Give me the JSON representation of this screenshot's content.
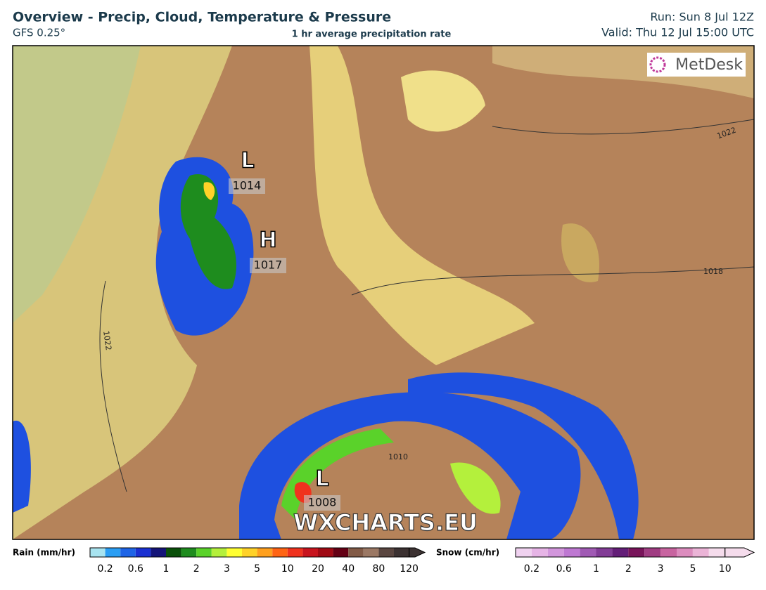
{
  "header": {
    "title": "Overview - Precip, Cloud, Temperature & Pressure",
    "model": "GFS 0.25°",
    "subtitle": "1 hr average precipitation rate",
    "run": "Run: Sun 8 Jul 12Z",
    "valid": "Valid: Thu 12 Jul 15:00 UTC"
  },
  "map": {
    "pressure_centers": [
      {
        "label": "L",
        "value": 1014
      },
      {
        "label": "H",
        "value": 1017
      },
      {
        "label": "L",
        "value": 1008
      }
    ],
    "isobar_labels": [
      1022,
      1018,
      1010,
      1022
    ],
    "logo": "MetDesk",
    "watermark": "WXCHARTS.EU"
  },
  "legend": {
    "rain": {
      "title": "Rain (mm/hr)",
      "labels": [
        0.2,
        0.6,
        1,
        2,
        3,
        5,
        10,
        20,
        40,
        80,
        120
      ],
      "colors": [
        "#a8e4f0",
        "#2a9ef4",
        "#1e64e6",
        "#1a30d2",
        "#141478",
        "#0a500a",
        "#1e8c1e",
        "#5ad22a",
        "#b4f03c",
        "#ffff32",
        "#ffd228",
        "#ffa01e",
        "#ff6414",
        "#f0321e",
        "#c8141e",
        "#a00a14",
        "#640014",
        "#825a46",
        "#9b7864",
        "#5a4640",
        "#3c3232"
      ]
    },
    "snow": {
      "title": "Snow (cm/hr)",
      "labels": [
        0.2,
        0.6,
        1,
        2,
        3,
        5,
        10
      ],
      "colors": [
        "#f0d2f0",
        "#e6b4e6",
        "#d296dc",
        "#be78d2",
        "#a05ab4",
        "#823c96",
        "#641e78",
        "#78145a",
        "#a03c82",
        "#c864a0",
        "#dc8cbe",
        "#ebb4d7",
        "#f5dcec"
      ]
    }
  }
}
